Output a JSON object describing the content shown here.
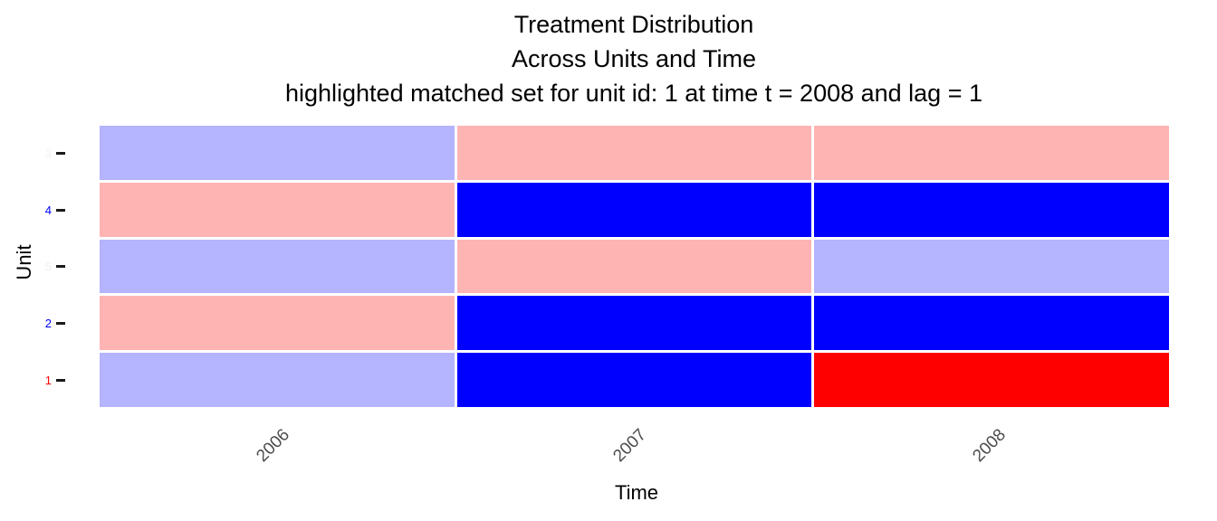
{
  "chart_data": {
    "type": "heatmap",
    "title": "Treatment Distribution",
    "subtitle": "Across Units and Time",
    "note": "highlighted matched set for unit id: 1 at time t = 2008 and lag = 1",
    "xlabel": "Time",
    "ylabel": "Unit",
    "x_categories": [
      "2006",
      "2007",
      "2008"
    ],
    "y_categories": [
      "3",
      "4",
      "5",
      "2",
      "1"
    ],
    "y_tick_label_colors": [
      "#F0F0F0",
      "#0000FF",
      "#F0F0F0",
      "#0000FF",
      "#FF0000"
    ],
    "x_tick_label_color": "#4D4D4D",
    "tick_mark_color": "#1A1A1A",
    "palette": {
      "lavender": "#B4B4FF",
      "pink": "#FFB4B4",
      "blue": "#0000FF",
      "red": "#FF0000"
    },
    "rows": [
      {
        "unit": "3",
        "cells": [
          "lavender",
          "pink",
          "pink"
        ]
      },
      {
        "unit": "4",
        "cells": [
          "pink",
          "blue",
          "blue"
        ]
      },
      {
        "unit": "5",
        "cells": [
          "lavender",
          "pink",
          "lavender"
        ]
      },
      {
        "unit": "2",
        "cells": [
          "pink",
          "blue",
          "blue"
        ]
      },
      {
        "unit": "1",
        "cells": [
          "lavender",
          "blue",
          "red"
        ]
      }
    ],
    "legend_position": "none",
    "grid_lines": "off",
    "panel_background": "#FFFFFF"
  }
}
